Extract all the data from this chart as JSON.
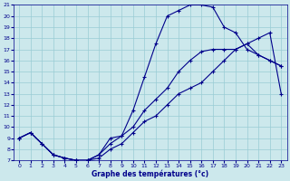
{
  "xlabel": "Graphe des températures (°c)",
  "bg_color": "#cce8ec",
  "grid_color": "#99ccd4",
  "line_color": "#00008b",
  "xlim": [
    -0.5,
    23.5
  ],
  "ylim": [
    7,
    21
  ],
  "xticks": [
    0,
    1,
    2,
    3,
    4,
    5,
    6,
    7,
    8,
    9,
    10,
    11,
    12,
    13,
    14,
    15,
    16,
    17,
    18,
    19,
    20,
    21,
    22,
    23
  ],
  "yticks": [
    7,
    8,
    9,
    10,
    11,
    12,
    13,
    14,
    15,
    16,
    17,
    18,
    19,
    20,
    21
  ],
  "line1_x": [
    0,
    1,
    2,
    3,
    4,
    5,
    6,
    7,
    8,
    9,
    10,
    11,
    12,
    13,
    14,
    15,
    16,
    17,
    18,
    19,
    20,
    21,
    22,
    23
  ],
  "line1_y": [
    9.0,
    9.5,
    8.5,
    7.5,
    7.2,
    7.0,
    7.0,
    7.5,
    8.5,
    9.2,
    11.5,
    14.5,
    17.5,
    20.0,
    20.5,
    21.0,
    21.0,
    20.8,
    19.0,
    18.5,
    17.0,
    16.5,
    16.0,
    15.5
  ],
  "line2_x": [
    0,
    1,
    2,
    3,
    4,
    5,
    6,
    7,
    8,
    9,
    10,
    11,
    12,
    13,
    14,
    15,
    16,
    17,
    18,
    19,
    20,
    21,
    22,
    23
  ],
  "line2_y": [
    9.0,
    9.5,
    8.5,
    7.5,
    7.2,
    7.0,
    7.0,
    7.5,
    9.0,
    9.2,
    10.0,
    11.5,
    12.5,
    13.5,
    15.0,
    16.0,
    16.8,
    17.0,
    17.0,
    17.0,
    17.5,
    16.5,
    16.0,
    15.5
  ],
  "line3_x": [
    0,
    1,
    2,
    3,
    4,
    5,
    6,
    7,
    8,
    9,
    10,
    11,
    12,
    13,
    14,
    15,
    16,
    17,
    18,
    19,
    20,
    21,
    22,
    23
  ],
  "line3_y": [
    9.0,
    9.5,
    8.5,
    7.5,
    7.2,
    7.0,
    7.0,
    7.2,
    8.0,
    8.5,
    9.5,
    10.5,
    11.0,
    12.0,
    13.0,
    13.5,
    14.0,
    15.0,
    16.0,
    17.0,
    17.5,
    18.0,
    18.5,
    13.0
  ]
}
